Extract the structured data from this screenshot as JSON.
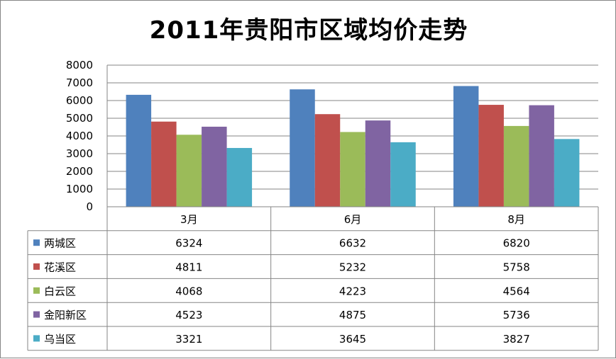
{
  "chart_data": {
    "type": "bar",
    "title": "2011年贵阳市区域均价走势",
    "categories": [
      "3月",
      "6月",
      "8月"
    ],
    "ylim": [
      0,
      8000
    ],
    "yticks": [
      0,
      1000,
      2000,
      3000,
      4000,
      5000,
      6000,
      7000,
      8000
    ],
    "grid": true,
    "legend": "data-table",
    "series": [
      {
        "name": "两城区",
        "color": "#4F81BD",
        "values": [
          6324,
          6632,
          6820
        ]
      },
      {
        "name": "花溪区",
        "color": "#C0504D",
        "values": [
          4811,
          5232,
          5758
        ]
      },
      {
        "name": "白云区",
        "color": "#9BBB59",
        "values": [
          4068,
          4223,
          4564
        ]
      },
      {
        "name": "金阳新区",
        "color": "#8064A2",
        "values": [
          4523,
          4875,
          5736
        ]
      },
      {
        "name": "乌当区",
        "color": "#4BACC6",
        "values": [
          3321,
          3645,
          3827
        ]
      }
    ]
  }
}
